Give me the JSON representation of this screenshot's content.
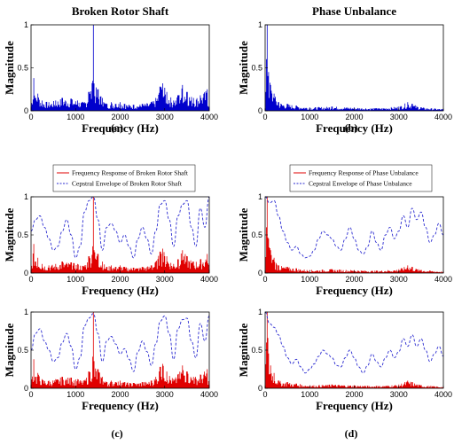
{
  "panel_labels": [
    "(a)",
    "(b)",
    "(c)",
    "(d)"
  ],
  "colors": {
    "fft": "#0000cc",
    "response": "#e00000",
    "envelope": "#2a2ad0"
  },
  "chart_data": [
    {
      "id": "a-broken-rotor-shaft",
      "type": "line",
      "title": "Broken Rotor Shaft",
      "xlabel": "Frequency (Hz)",
      "ylabel": "Magnitude",
      "xlim": [
        0,
        4000
      ],
      "ylim": [
        0,
        1
      ],
      "xticks": [
        "0",
        "1000",
        "2000",
        "3000",
        "4000"
      ],
      "yticks": [
        "0",
        "0.5",
        "1"
      ],
      "series": [
        {
          "role": "spectrum",
          "x": [
            0,
            60,
            100,
            150,
            250,
            400,
            550,
            700,
            900,
            1050,
            1200,
            1300,
            1380,
            1400,
            1420,
            1500,
            1600,
            1700,
            1800,
            1900,
            2000,
            2100,
            2300,
            2500,
            2700,
            2800,
            2900,
            2950,
            3050,
            3200,
            3300,
            3400,
            3500,
            3650,
            3800,
            3950,
            4000
          ],
          "y": [
            0.05,
            0.38,
            0.15,
            0.2,
            0.12,
            0.1,
            0.12,
            0.15,
            0.14,
            0.12,
            0.1,
            0.22,
            0.35,
            1.0,
            0.3,
            0.25,
            0.15,
            0.08,
            0.1,
            0.08,
            0.1,
            0.08,
            0.07,
            0.08,
            0.1,
            0.15,
            0.28,
            0.32,
            0.22,
            0.12,
            0.18,
            0.3,
            0.22,
            0.15,
            0.18,
            0.25,
            0.05
          ]
        }
      ]
    },
    {
      "id": "b-phase-unbalance",
      "type": "line",
      "title": "Phase Unbalance",
      "xlabel": "Frequency (Hz)",
      "ylabel": "Magnitude",
      "xlim": [
        0,
        4000
      ],
      "ylim": [
        0,
        1
      ],
      "xticks": [
        "0",
        "1000",
        "2000",
        "3000",
        "4000"
      ],
      "yticks": [
        "0",
        "0.5",
        "1"
      ],
      "series": [
        {
          "role": "spectrum",
          "x": [
            0,
            30,
            50,
            80,
            120,
            200,
            300,
            500,
            700,
            1000,
            1500,
            2000,
            2500,
            3000,
            3200,
            3300,
            3500,
            4000
          ],
          "y": [
            0.02,
            0.6,
            1.0,
            0.45,
            0.3,
            0.2,
            0.1,
            0.08,
            0.06,
            0.04,
            0.05,
            0.04,
            0.03,
            0.05,
            0.1,
            0.08,
            0.04,
            0.02
          ]
        }
      ]
    },
    {
      "id": "c-top",
      "type": "line",
      "xlabel": "Frequency (Hz)",
      "ylabel": "Magnitude",
      "xlim": [
        0,
        4000
      ],
      "ylim": [
        0,
        1
      ],
      "xticks": [
        "0",
        "1000",
        "2000",
        "3000",
        "4000"
      ],
      "yticks": [
        "0",
        "0.5",
        "1"
      ],
      "legend": {
        "placement": "top",
        "entries": [
          "Frequency Response of Broken Rotor Shaft",
          "Cepstral Envelope of Broken Rotor Shaft"
        ]
      },
      "series": [
        {
          "name": "Frequency Response of Broken Rotor Shaft",
          "x": [
            0,
            60,
            100,
            150,
            250,
            400,
            550,
            700,
            900,
            1050,
            1200,
            1300,
            1380,
            1400,
            1420,
            1500,
            1600,
            1700,
            1800,
            1900,
            2000,
            2100,
            2300,
            2500,
            2700,
            2800,
            2900,
            2950,
            3050,
            3200,
            3300,
            3400,
            3500,
            3650,
            3800,
            3950,
            4000
          ],
          "y": [
            0.05,
            0.38,
            0.15,
            0.2,
            0.12,
            0.1,
            0.12,
            0.15,
            0.14,
            0.12,
            0.1,
            0.22,
            0.35,
            1.0,
            0.3,
            0.25,
            0.15,
            0.08,
            0.1,
            0.08,
            0.1,
            0.08,
            0.07,
            0.08,
            0.1,
            0.15,
            0.28,
            0.32,
            0.22,
            0.12,
            0.18,
            0.3,
            0.22,
            0.15,
            0.18,
            0.25,
            0.05
          ]
        },
        {
          "name": "Cepstral Envelope of Broken Rotor Shaft",
          "x": [
            0,
            100,
            200,
            300,
            400,
            500,
            600,
            700,
            800,
            900,
            1000,
            1100,
            1200,
            1300,
            1400,
            1500,
            1600,
            1700,
            1800,
            1900,
            2000,
            2100,
            2200,
            2300,
            2400,
            2500,
            2600,
            2700,
            2800,
            2900,
            3000,
            3100,
            3200,
            3300,
            3400,
            3500,
            3600,
            3700,
            3800,
            3900,
            4000
          ],
          "y": [
            0.55,
            0.7,
            0.75,
            0.6,
            0.45,
            0.3,
            0.35,
            0.55,
            0.7,
            0.5,
            0.2,
            0.35,
            0.8,
            0.95,
            1.0,
            0.7,
            0.3,
            0.6,
            0.65,
            0.55,
            0.4,
            0.5,
            0.35,
            0.2,
            0.45,
            0.6,
            0.45,
            0.25,
            0.55,
            0.9,
            0.95,
            0.7,
            0.35,
            0.75,
            0.9,
            0.95,
            0.6,
            0.35,
            0.85,
            0.6,
            1.0
          ]
        }
      ]
    },
    {
      "id": "c-bottom",
      "type": "line",
      "xlabel": "Frequency (Hz)",
      "ylabel": "Magnitude",
      "xlim": [
        0,
        4000
      ],
      "ylim": [
        0,
        1
      ],
      "xticks": [
        "0",
        "1000",
        "2000",
        "3000",
        "4000"
      ],
      "yticks": [
        "0",
        "0.5",
        "1"
      ],
      "series": [
        {
          "name": "Frequency Response of Broken Rotor Shaft",
          "x": [
            0,
            60,
            100,
            150,
            250,
            400,
            550,
            700,
            900,
            1050,
            1200,
            1300,
            1380,
            1400,
            1420,
            1500,
            1600,
            1700,
            1800,
            1900,
            2000,
            2100,
            2300,
            2500,
            2700,
            2800,
            2900,
            2950,
            3050,
            3200,
            3300,
            3400,
            3500,
            3650,
            3800,
            3950,
            4000
          ],
          "y": [
            0.05,
            0.38,
            0.15,
            0.2,
            0.12,
            0.1,
            0.12,
            0.15,
            0.14,
            0.12,
            0.1,
            0.22,
            0.35,
            1.0,
            0.3,
            0.25,
            0.15,
            0.08,
            0.1,
            0.08,
            0.1,
            0.08,
            0.07,
            0.08,
            0.1,
            0.15,
            0.28,
            0.32,
            0.22,
            0.12,
            0.18,
            0.3,
            0.22,
            0.15,
            0.18,
            0.25,
            0.05
          ]
        },
        {
          "name": "Cepstral Envelope of Broken Rotor Shaft",
          "x": [
            0,
            100,
            200,
            300,
            400,
            500,
            600,
            700,
            800,
            900,
            1000,
            1100,
            1200,
            1300,
            1400,
            1500,
            1600,
            1700,
            1800,
            1900,
            2000,
            2100,
            2200,
            2300,
            2400,
            2500,
            2600,
            2700,
            2800,
            2900,
            3000,
            3100,
            3200,
            3300,
            3400,
            3500,
            3600,
            3700,
            3800,
            3900,
            4000
          ],
          "y": [
            0.5,
            0.72,
            0.78,
            0.62,
            0.5,
            0.35,
            0.4,
            0.6,
            0.72,
            0.55,
            0.25,
            0.4,
            0.82,
            0.92,
            0.98,
            0.72,
            0.35,
            0.62,
            0.68,
            0.58,
            0.45,
            0.52,
            0.38,
            0.22,
            0.48,
            0.62,
            0.48,
            0.3,
            0.58,
            0.88,
            0.95,
            0.72,
            0.38,
            0.78,
            0.9,
            0.92,
            0.62,
            0.4,
            0.85,
            0.62,
            0.95
          ]
        }
      ]
    },
    {
      "id": "d-top",
      "type": "line",
      "xlabel": "Frequency (Hz)",
      "ylabel": "Magnitude",
      "xlim": [
        0,
        4000
      ],
      "ylim": [
        0,
        1
      ],
      "xticks": [
        "0",
        "1000",
        "2000",
        "3000",
        "4000"
      ],
      "yticks": [
        "0",
        "0.5",
        "1"
      ],
      "legend": {
        "placement": "top",
        "entries": [
          "Frequency Response of Phase Unbalance",
          "Cepstral Envelope of Phase Unbalance"
        ]
      },
      "series": [
        {
          "name": "Frequency Response of Phase Unbalance",
          "x": [
            0,
            30,
            50,
            80,
            120,
            200,
            300,
            500,
            700,
            1000,
            1500,
            2000,
            2500,
            3000,
            3200,
            3300,
            3500,
            4000
          ],
          "y": [
            0.02,
            0.6,
            1.0,
            0.45,
            0.3,
            0.2,
            0.1,
            0.08,
            0.06,
            0.04,
            0.05,
            0.04,
            0.03,
            0.05,
            0.1,
            0.08,
            0.04,
            0.02
          ]
        },
        {
          "name": "Cepstral Envelope of Phase Unbalance",
          "x": [
            0,
            100,
            200,
            300,
            400,
            500,
            600,
            700,
            800,
            900,
            1000,
            1100,
            1200,
            1300,
            1400,
            1500,
            1600,
            1700,
            1800,
            1900,
            2000,
            2100,
            2200,
            2300,
            2400,
            2500,
            2600,
            2700,
            2800,
            2900,
            3000,
            3100,
            3200,
            3300,
            3400,
            3500,
            3600,
            3700,
            3800,
            3900,
            4000
          ],
          "y": [
            1.0,
            0.92,
            0.95,
            0.75,
            0.55,
            0.4,
            0.3,
            0.35,
            0.25,
            0.2,
            0.22,
            0.3,
            0.45,
            0.55,
            0.5,
            0.45,
            0.35,
            0.3,
            0.45,
            0.6,
            0.45,
            0.3,
            0.25,
            0.35,
            0.55,
            0.4,
            0.3,
            0.5,
            0.6,
            0.45,
            0.55,
            0.75,
            0.6,
            0.85,
            0.7,
            0.8,
            0.6,
            0.4,
            0.5,
            0.65,
            0.5
          ]
        }
      ]
    },
    {
      "id": "d-bottom",
      "type": "line",
      "xlabel": "Frequency (Hz)",
      "ylabel": "Magnitude",
      "xlim": [
        0,
        4000
      ],
      "ylim": [
        0,
        1
      ],
      "xticks": [
        "0",
        "1000",
        "2000",
        "3000",
        "4000"
      ],
      "yticks": [
        "0",
        "0.5",
        "1"
      ],
      "series": [
        {
          "name": "Frequency Response of Phase Unbalance",
          "x": [
            0,
            30,
            50,
            80,
            120,
            200,
            300,
            500,
            700,
            1000,
            1500,
            2000,
            2500,
            3000,
            3200,
            3300,
            3500,
            4000
          ],
          "y": [
            0.02,
            0.6,
            1.0,
            0.45,
            0.3,
            0.2,
            0.1,
            0.08,
            0.06,
            0.04,
            0.05,
            0.04,
            0.03,
            0.05,
            0.1,
            0.08,
            0.04,
            0.02
          ]
        },
        {
          "name": "Cepstral Envelope of Phase Unbalance",
          "x": [
            0,
            100,
            200,
            300,
            400,
            500,
            600,
            700,
            800,
            900,
            1000,
            1100,
            1200,
            1300,
            1400,
            1500,
            1600,
            1700,
            1800,
            1900,
            2000,
            2100,
            2200,
            2300,
            2400,
            2500,
            2600,
            2700,
            2800,
            2900,
            3000,
            3100,
            3200,
            3300,
            3400,
            3500,
            3600,
            3700,
            3800,
            3900,
            4000
          ],
          "y": [
            1.0,
            0.85,
            0.8,
            0.7,
            0.55,
            0.4,
            0.32,
            0.38,
            0.28,
            0.2,
            0.25,
            0.32,
            0.42,
            0.5,
            0.45,
            0.4,
            0.3,
            0.28,
            0.4,
            0.5,
            0.4,
            0.28,
            0.2,
            0.3,
            0.45,
            0.35,
            0.28,
            0.4,
            0.5,
            0.4,
            0.48,
            0.65,
            0.55,
            0.7,
            0.55,
            0.65,
            0.5,
            0.35,
            0.45,
            0.55,
            0.42
          ]
        }
      ]
    }
  ]
}
